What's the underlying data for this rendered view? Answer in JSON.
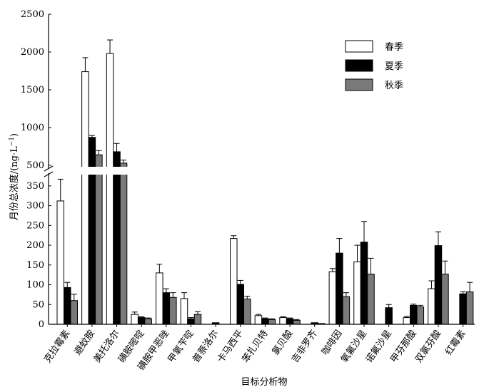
{
  "chart_data": {
    "type": "bar",
    "title": "",
    "xlabel": "目标分析物",
    "ylabel": "月份总浓度/(ng·L",
    "ylabel_sup": "−1",
    "ylabel_close": ")",
    "broken_axis": true,
    "lower_ylim": [
      0,
      375
    ],
    "upper_ylim": [
      500,
      2500
    ],
    "lower_yticks": [
      "0",
      "50",
      "100",
      "150",
      "200",
      "250",
      "300",
      "350"
    ],
    "upper_yticks": [
      "500",
      "1000",
      "1500",
      "2000",
      "2500"
    ],
    "legend_position": "top-right",
    "categories": [
      "克拉霉素",
      "避蚊胺",
      "美托洛尔",
      "磺胺嘧啶",
      "磺胺甲恶唑",
      "甲氧苄啶",
      "普萘洛尔",
      "卡马西平",
      "苯扎贝特",
      "氯贝酸",
      "吉非罗齐",
      "咖啡因",
      "氧氟沙星",
      "诺氟沙星",
      "甲芬那酸",
      "双氯芬酸",
      "红霉素"
    ],
    "series": [
      {
        "name": "春季",
        "color": "#ffffff",
        "values": [
          312,
          1740,
          1980,
          25,
          130,
          65,
          0,
          217,
          22,
          17,
          0,
          133,
          158,
          0,
          17,
          90,
          0
        ],
        "errors": [
          55,
          185,
          180,
          6,
          22,
          15,
          0,
          7,
          3,
          2,
          0,
          8,
          42,
          0,
          3,
          20,
          0
        ]
      },
      {
        "name": "夏季",
        "color": "#000000",
        "values": [
          93,
          870,
          680,
          17,
          80,
          14,
          4,
          101,
          14,
          14,
          4,
          180,
          208,
          42,
          48,
          199,
          77
        ],
        "errors": [
          13,
          25,
          110,
          2,
          10,
          3,
          0,
          10,
          2,
          2,
          0,
          37,
          52,
          8,
          3,
          35,
          5
        ]
      },
      {
        "name": "秋季",
        "color": "#7a7a7a",
        "values": [
          60,
          640,
          530,
          14,
          68,
          25,
          0,
          64,
          12,
          10,
          2,
          70,
          127,
          0,
          44,
          127,
          82
        ],
        "errors": [
          16,
          55,
          40,
          2,
          12,
          7,
          0,
          7,
          2,
          2,
          0,
          10,
          40,
          0,
          4,
          33,
          24
        ]
      }
    ]
  }
}
